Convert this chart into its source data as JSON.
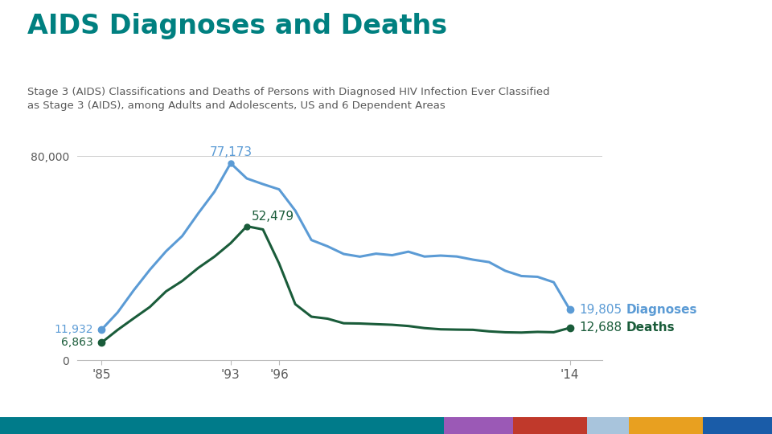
{
  "title": "AIDS Diagnoses and Deaths",
  "subtitle": "Stage 3 (AIDS) Classifications and Deaths of Persons with Diagnosed HIV Infection Ever Classified\nas Stage 3 (AIDS), among Adults and Adolescents, US and 6 Dependent Areas",
  "title_color": "#008080",
  "subtitle_color": "#595959",
  "diagnoses_color": "#5b9bd5",
  "deaths_color": "#1a5c3a",
  "years_diagnoses": [
    1985,
    1986,
    1987,
    1988,
    1989,
    1990,
    1991,
    1992,
    1993,
    1994,
    1995,
    1996,
    1997,
    1998,
    1999,
    2000,
    2001,
    2002,
    2003,
    2004,
    2005,
    2006,
    2007,
    2008,
    2009,
    2010,
    2011,
    2012,
    2013,
    2014
  ],
  "values_diagnoses": [
    11932,
    18696,
    27408,
    35447,
    42675,
    48634,
    57578,
    66026,
    77173,
    71196,
    68978,
    66922,
    58598,
    47083,
    44618,
    41613,
    40567,
    41735,
    41136,
    42514,
    40608,
    40980,
    40627,
    39390,
    38430,
    35028,
    32975,
    32664,
    30548,
    19805
  ],
  "years_deaths": [
    1985,
    1986,
    1987,
    1988,
    1989,
    1990,
    1991,
    1992,
    1993,
    1994,
    1995,
    1996,
    1997,
    1998,
    1999,
    2000,
    2001,
    2002,
    2003,
    2004,
    2005,
    2006,
    2007,
    2008,
    2009,
    2010,
    2011,
    2012,
    2013,
    2014
  ],
  "values_deaths": [
    6863,
    11871,
    16412,
    20869,
    26972,
    31038,
    36178,
    40587,
    45850,
    52479,
    51228,
    37874,
    21962,
    17047,
    16273,
    14478,
    14378,
    14115,
    13879,
    13403,
    12584,
    12113,
    11990,
    11913,
    11303,
    10939,
    10837,
    11097,
    10955,
    12688
  ],
  "ylim": [
    0,
    85000
  ],
  "yticks": [
    0,
    80000
  ],
  "ytick_labels": [
    "0",
    "80,000"
  ],
  "xtick_positions": [
    1985,
    1993,
    1996,
    2014
  ],
  "xtick_labels": [
    "'85",
    "'93",
    "'96",
    "'14"
  ],
  "bg_color": "#ffffff",
  "footer_colors": [
    "#007b8a",
    "#9b59b6",
    "#c0392b",
    "#a8c4dc",
    "#e8a020",
    "#1a5ca8"
  ],
  "footer_widths": [
    0.575,
    0.09,
    0.095,
    0.055,
    0.095,
    0.09
  ]
}
